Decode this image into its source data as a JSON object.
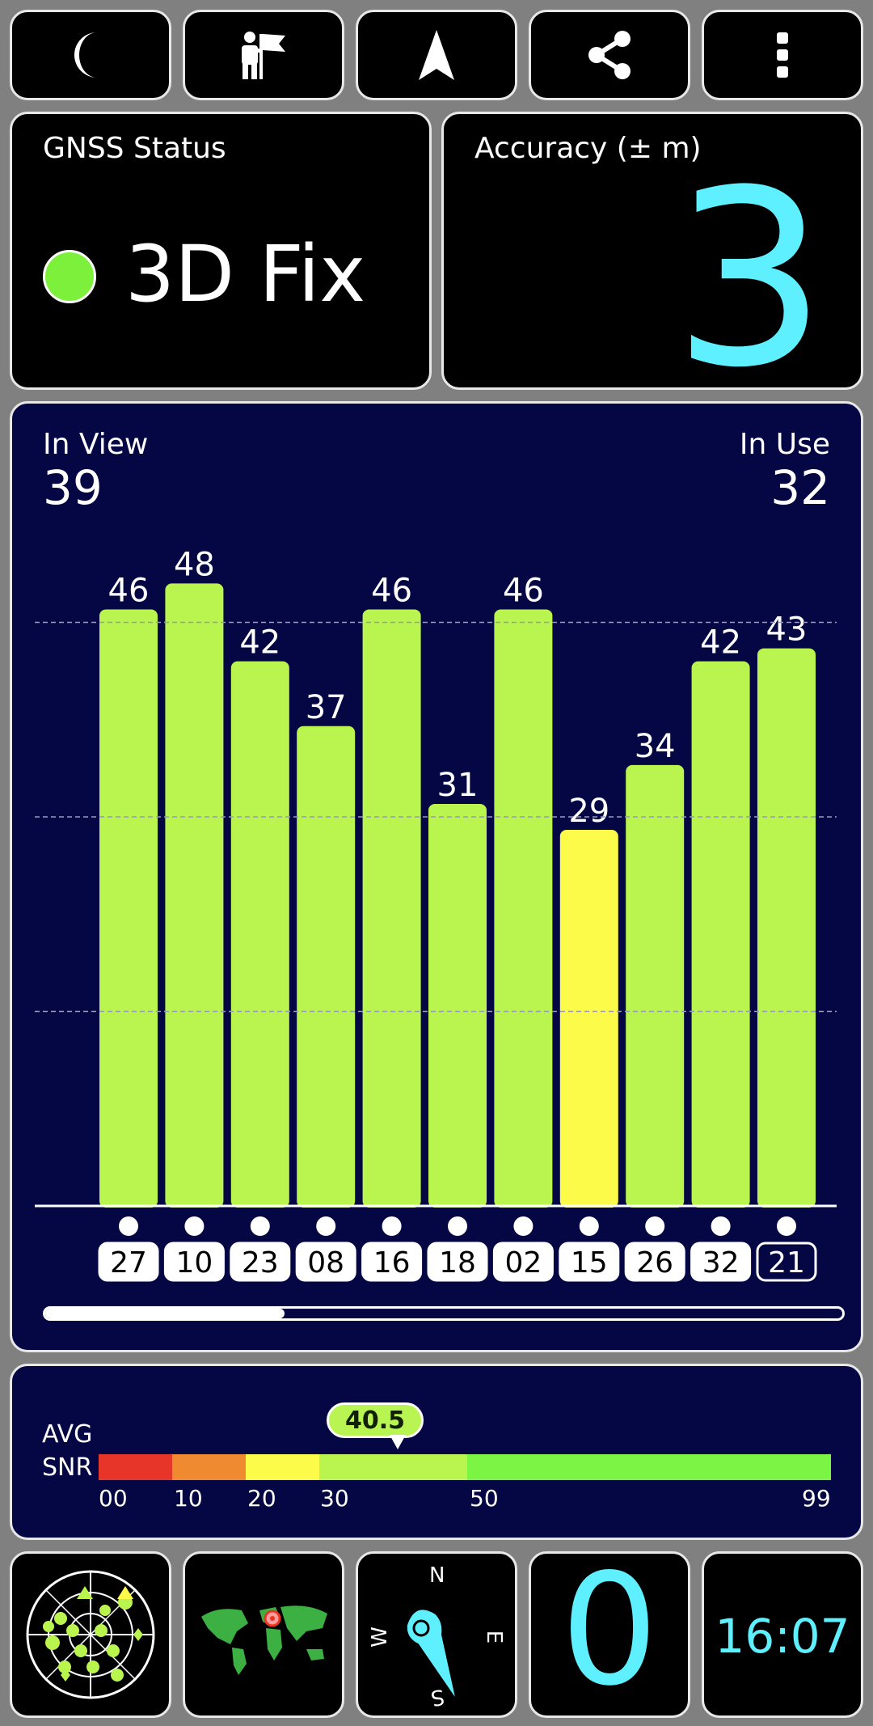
{
  "toolbar": {
    "icons": [
      "moon-icon",
      "person-flag-icon",
      "navigation-arrow-icon",
      "share-icon",
      "more-vert-icon"
    ]
  },
  "gnss": {
    "title": "GNSS Status",
    "fix": "3D Fix",
    "fix_color": "#7cf03b"
  },
  "accuracy": {
    "title": "Accuracy (± m)",
    "value": "3",
    "color": "#5ff0ff"
  },
  "satellites": {
    "in_view_label": "In View",
    "in_view": "39",
    "in_use_label": "In Use",
    "in_use": "32"
  },
  "chart_data": {
    "type": "bar",
    "categories": [
      "27",
      "10",
      "23",
      "08",
      "16",
      "18",
      "02",
      "15",
      "26",
      "32",
      "21"
    ],
    "values": [
      46,
      48,
      42,
      37,
      46,
      31,
      46,
      29,
      34,
      42,
      43
    ],
    "value_labels": [
      "46",
      "48",
      "42",
      "37",
      "46",
      "31",
      "46",
      "29",
      "34",
      "42",
      "43"
    ],
    "colors": [
      "#b9f54e",
      "#b9f54e",
      "#b9f54e",
      "#b9f54e",
      "#b9f54e",
      "#b9f54e",
      "#b9f54e",
      "#fdfb4a",
      "#b9f54e",
      "#b9f54e",
      "#b9f54e"
    ],
    "ylim": [
      0,
      60
    ],
    "grid": true,
    "scroll_fraction": 0.3
  },
  "snr": {
    "label_line1": "AVG",
    "label_line2": "SNR",
    "value": "40.5",
    "ticks": [
      "00",
      "10",
      "20",
      "30",
      "50",
      "99"
    ],
    "segment_colors": [
      "#e8352a",
      "#f08a30",
      "#fdfb4a",
      "#b9f54e",
      "#7bf444"
    ]
  },
  "bottom": {
    "compass": {
      "n": "N",
      "e": "E",
      "s": "S",
      "w": "W"
    },
    "speed": "0",
    "time": "16:07"
  }
}
